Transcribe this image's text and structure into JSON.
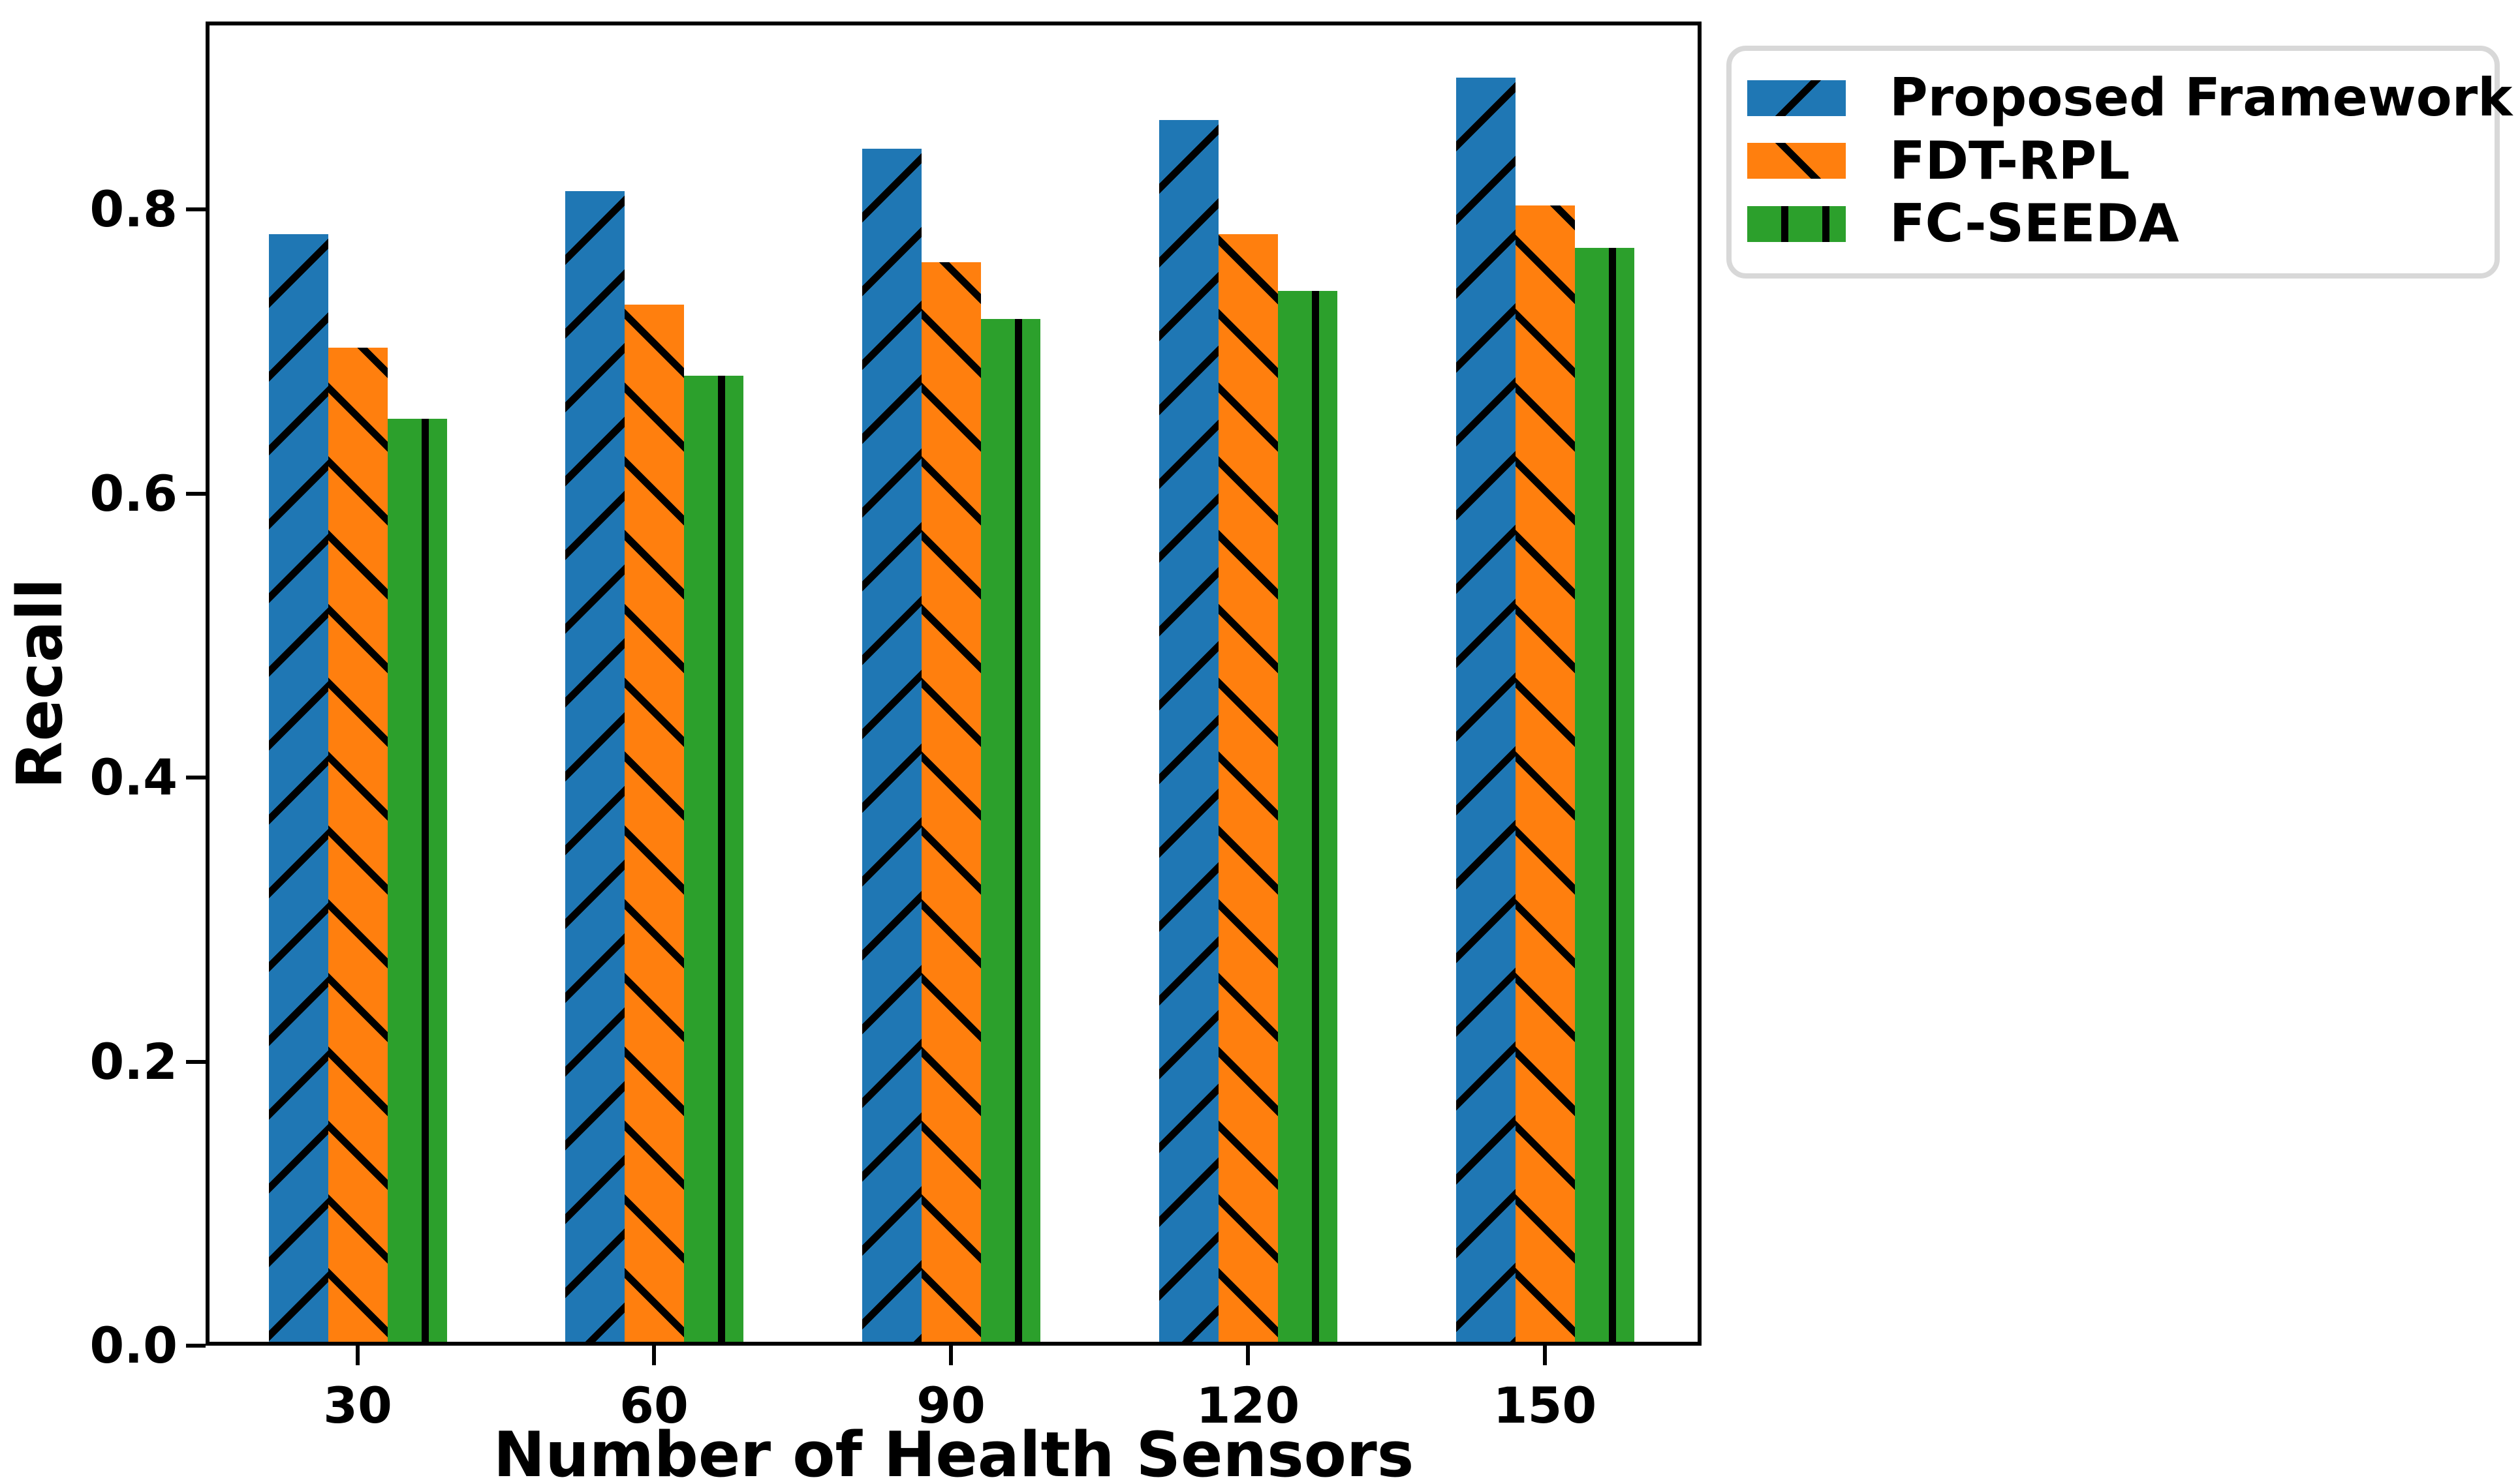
{
  "chart_data": {
    "type": "bar",
    "title": "",
    "xlabel": "Number of Health Sensors",
    "ylabel": "Recall",
    "categories": [
      "30",
      "60",
      "90",
      "120",
      "150"
    ],
    "series": [
      {
        "name": "Proposed Framework",
        "color": "#1f77b4",
        "hatch": "/",
        "values": [
          0.78,
          0.81,
          0.84,
          0.86,
          0.89
        ]
      },
      {
        "name": "FDT-RPL",
        "color": "#ff7f0e",
        "hatch": "\\",
        "values": [
          0.7,
          0.73,
          0.76,
          0.78,
          0.8
        ]
      },
      {
        "name": "FC-SEEDA",
        "color": "#2ca02c",
        "hatch": "|",
        "values": [
          0.65,
          0.68,
          0.72,
          0.74,
          0.77
        ]
      }
    ],
    "yticks": {
      "labels": [
        "0.0",
        "0.2",
        "0.4",
        "0.6",
        "0.8"
      ],
      "values": [
        0.0,
        0.2,
        0.4,
        0.6,
        0.8
      ]
    },
    "ylim": [
      0.0,
      0.93
    ],
    "grid": "off",
    "legend_position": "outside-upper-right",
    "hatch_color": "#000000",
    "axis_color": "#000000",
    "background_color": "#ffffff",
    "legend_border_color": "#d8d8d8"
  }
}
